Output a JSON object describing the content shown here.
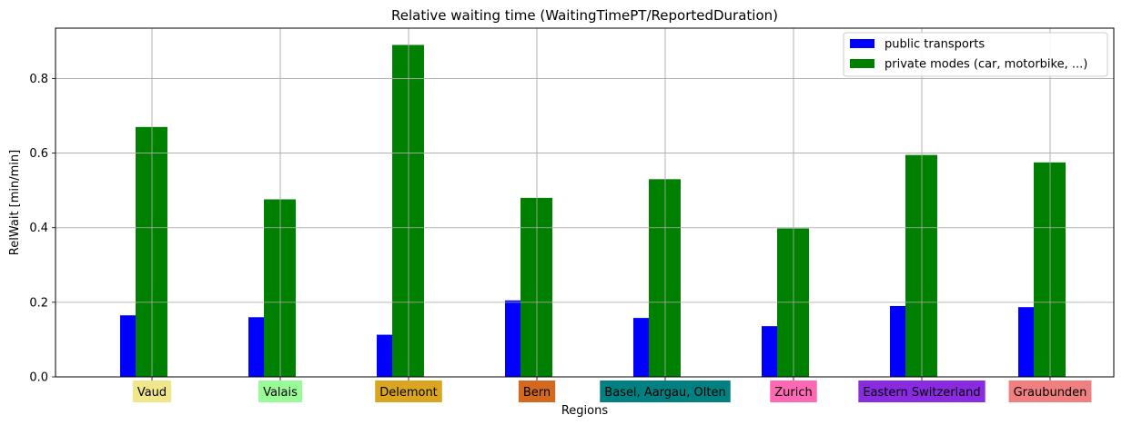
{
  "chart_data": {
    "type": "bar",
    "title": "Relative waiting time (WaitingTimePT/ReportedDuration)",
    "xlabel": "Regions",
    "ylabel": "RelWait [min/min]",
    "ylim": [
      0,
      0.935
    ],
    "yticks": [
      "0.0",
      "0.2",
      "0.4",
      "0.6",
      "0.8"
    ],
    "grid": true,
    "legend_position": "top-right",
    "categories": [
      "Vaud",
      "Valais",
      "Delemont",
      "Bern",
      "Basel, Aargau, Olten",
      "Zurich",
      "Eastern Switzerland",
      "Graubunden"
    ],
    "category_colors": [
      "#f0e68c",
      "#98fb98",
      "#daa520",
      "#d2691e",
      "#008080",
      "#ff69b4",
      "#8a2be2",
      "#f08080"
    ],
    "series": [
      {
        "name": "public transports",
        "color": "#0000ff",
        "values": [
          0.165,
          0.16,
          0.113,
          0.205,
          0.158,
          0.136,
          0.19,
          0.187
        ]
      },
      {
        "name": "private modes (car, motorbike, ...)",
        "color": "#008000",
        "values": [
          0.67,
          0.476,
          0.89,
          0.48,
          0.53,
          0.398,
          0.595,
          0.575
        ]
      }
    ]
  }
}
